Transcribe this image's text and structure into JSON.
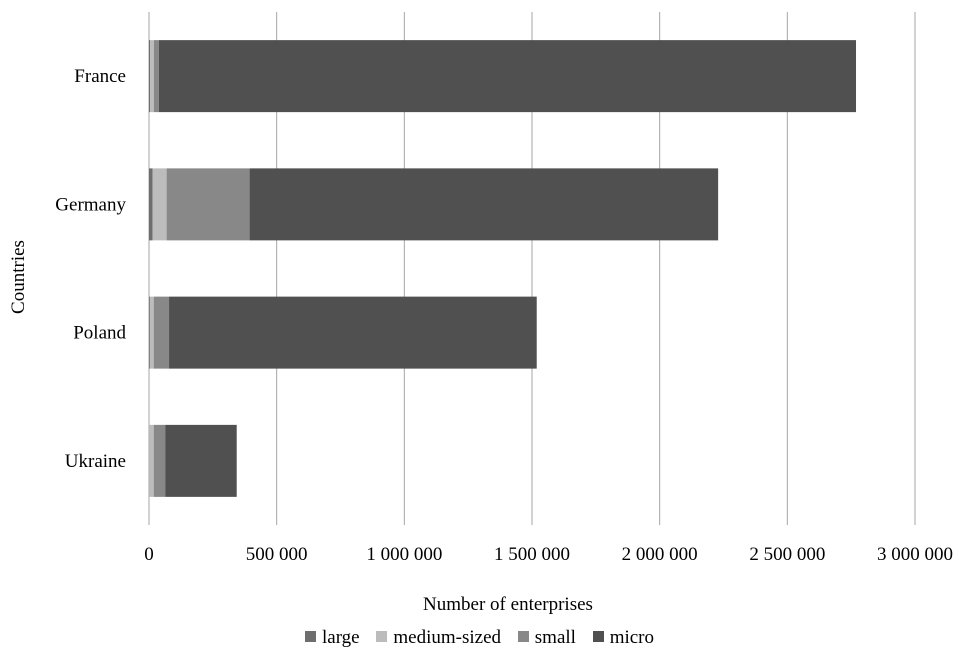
{
  "chart_data": {
    "type": "bar",
    "orientation": "horizontal",
    "stacked": true,
    "title": "",
    "xlabel": "Number of enterprises",
    "ylabel": "Countries",
    "categories": [
      "France",
      "Germany",
      "Poland",
      "Ukraine"
    ],
    "xlim": [
      0,
      3000000
    ],
    "xticks": [
      0,
      500000,
      1000000,
      1500000,
      2000000,
      2500000,
      3000000
    ],
    "xtick_labels": [
      "0",
      "500 000",
      "1 000 000",
      "1 500 000",
      "2 000 000",
      "2 500 000",
      "3 000 000"
    ],
    "grid": "vertical",
    "legend_position": "bottom",
    "series": [
      {
        "name": "large",
        "color": "#6e6e6e",
        "values": [
          4000,
          14000,
          3500,
          500
        ]
      },
      {
        "name": "medium-sized",
        "color": "#bcbcbc",
        "values": [
          15000,
          55000,
          15000,
          18000
        ]
      },
      {
        "name": "small",
        "color": "#888888",
        "values": [
          20000,
          325000,
          60000,
          45000
        ]
      },
      {
        "name": "micro",
        "color": "#505050",
        "values": [
          2730000,
          1835000,
          1440000,
          280000
        ]
      }
    ]
  }
}
